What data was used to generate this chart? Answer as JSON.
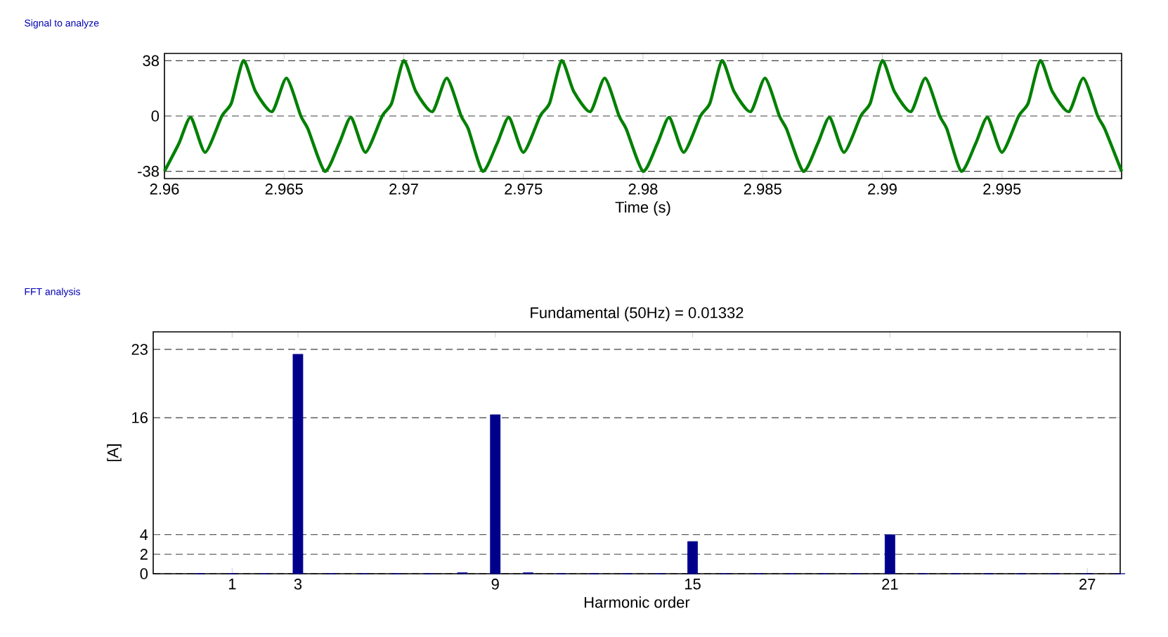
{
  "chart_data": [
    {
      "type": "line",
      "title": "Signal to analyze",
      "xlabel": "Time (s)",
      "x": [
        2.96,
        2.9606,
        2.9611,
        2.9617,
        2.9624,
        2.9628,
        2.9633,
        2.9638,
        2.9645,
        2.9651,
        2.9657,
        2.966,
        2.9667,
        2.9673,
        2.9678,
        2.9684,
        2.9691,
        2.9695,
        2.97,
        2.9705,
        2.9712,
        2.9718,
        2.9724,
        2.9727,
        2.9733,
        2.9739,
        2.9744,
        2.975,
        2.9757,
        2.9761,
        2.9766,
        2.9771,
        2.9778,
        2.9784,
        2.979,
        2.9793,
        2.98,
        2.9806,
        2.9811,
        2.9817,
        2.9824,
        2.9828,
        2.9833,
        2.9838,
        2.9845,
        2.9851,
        2.9857,
        2.986,
        2.9867,
        2.9873,
        2.9878,
        2.9884,
        2.9891,
        2.9895,
        2.99,
        2.9905,
        2.9912,
        2.9918,
        2.9924,
        2.9927,
        2.9933,
        2.9939,
        2.9944,
        2.995,
        2.9957,
        2.9961,
        2.9966,
        2.9971,
        2.9978,
        2.9984,
        2.999,
        2.9993,
        3.0
      ],
      "series": [
        {
          "color": "#008000",
          "values": [
            -38,
            -19,
            -1,
            -25,
            0,
            9,
            38,
            17,
            3,
            26,
            0,
            -9,
            -38,
            -19,
            -1,
            -25,
            0,
            9,
            38,
            17,
            3,
            26,
            0,
            -9,
            -38,
            -19,
            -1,
            -25,
            0,
            9,
            38,
            17,
            3,
            26,
            0,
            -9,
            -38,
            -19,
            -1,
            -25,
            0,
            9,
            38,
            17,
            3,
            26,
            0,
            -9,
            -38,
            -19,
            -1,
            -25,
            0,
            9,
            38,
            17,
            3,
            26,
            0,
            -9,
            -38,
            -19,
            -1,
            -25,
            0,
            9,
            38,
            17,
            3,
            26,
            0,
            -9,
            -38
          ]
        }
      ],
      "xlim": [
        2.96,
        3.0
      ],
      "ylim": [
        -43,
        43
      ],
      "xticks": [
        2.96,
        2.965,
        2.97,
        2.975,
        2.98,
        2.985,
        2.99,
        2.995
      ],
      "yticks": [
        -38,
        0,
        38
      ],
      "grid": "y"
    },
    {
      "type": "bar",
      "title": "FFT analysis",
      "subtitle": "Fundamental (50Hz) = 0.01332",
      "xlabel": "Harmonic order",
      "ylabel": "[A]",
      "x": [
        0,
        1,
        2,
        3,
        4,
        5,
        6,
        7,
        8,
        9,
        10,
        11,
        12,
        13,
        14,
        15,
        16,
        17,
        18,
        19,
        20,
        21,
        22,
        23,
        24,
        25,
        26,
        27,
        28
      ],
      "values": [
        0,
        0,
        0,
        22.5,
        0,
        0,
        0,
        0,
        0.1,
        16.3,
        0.1,
        0,
        0,
        0,
        0,
        3.3,
        0,
        0,
        0,
        0,
        0,
        4.0,
        0,
        0,
        0,
        0,
        0,
        0,
        0
      ],
      "color": "#00008b",
      "xlim": [
        -1.4,
        28
      ],
      "ylim": [
        0,
        24.8
      ],
      "xticks": [
        1,
        3,
        9,
        15,
        21,
        27
      ],
      "yticks": [
        0,
        2,
        4,
        16,
        23
      ],
      "grid": "y"
    }
  ]
}
